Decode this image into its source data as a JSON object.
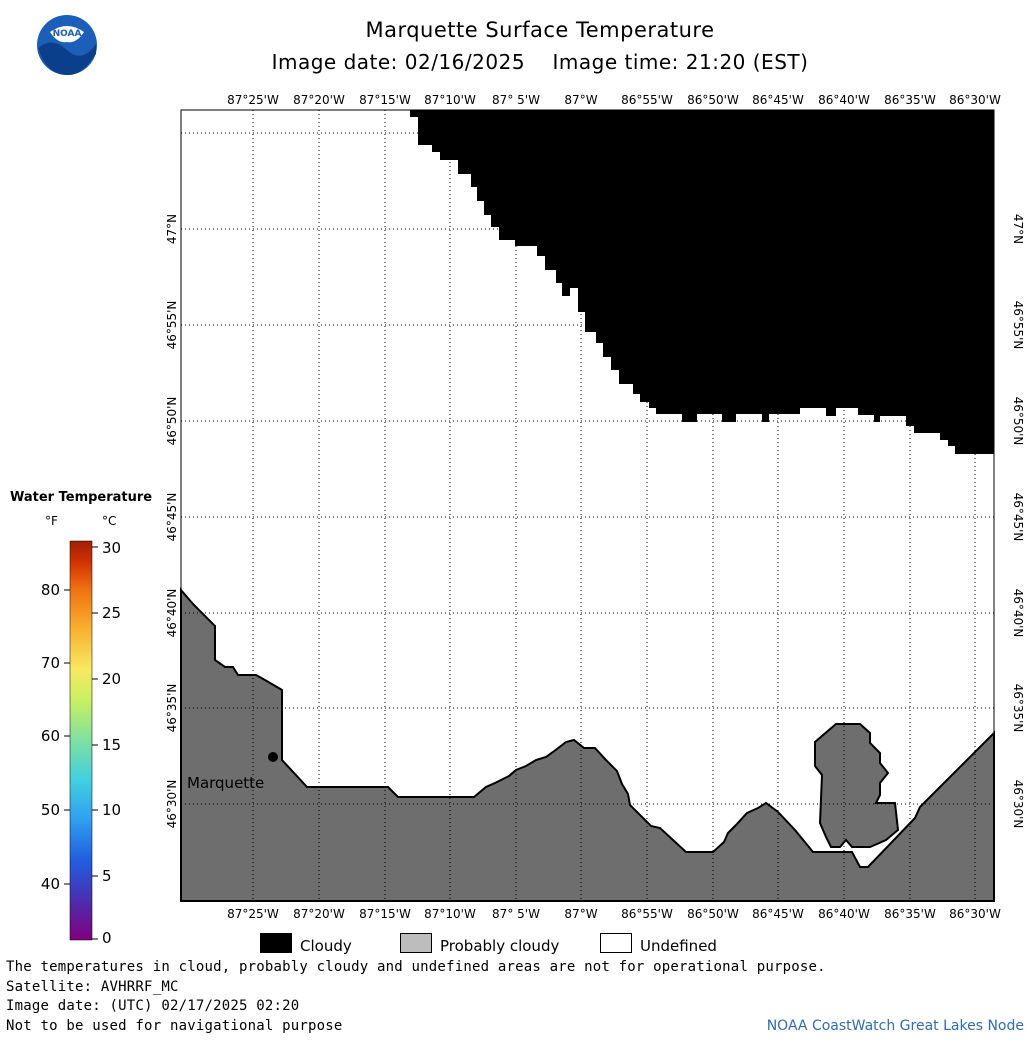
{
  "header": {
    "title": "Marquette Surface Temperature",
    "image_date_label": "Image date: 02/16/2025",
    "image_time_label": "Image time: 21:20 (EST)"
  },
  "logo": {
    "text": "NOAA",
    "icon": "noaa-logo-icon"
  },
  "map": {
    "lon_labels": [
      "87°25'W",
      "87°20'W",
      "87°15'W",
      "87°10'W",
      "87° 5'W",
      "87°W",
      "86°55'W",
      "86°50'W",
      "86°45'W",
      "86°40'W",
      "86°35'W",
      "86°30'W"
    ],
    "lat_labels": [
      "47°N",
      "46°55'N",
      "46°50'N",
      "46°45'N",
      "46°40'N",
      "46°35'N",
      "46°30'N"
    ],
    "city_label": "Marquette",
    "colors": {
      "cloud": "#000000",
      "land": "#6e6e6e",
      "water_undefined": "#ffffff",
      "grid": "#000000"
    }
  },
  "colorbar": {
    "title": "Water Temperature",
    "unit_f": "°F",
    "unit_c": "°C",
    "f_ticks": [
      "80",
      "70",
      "60",
      "50",
      "40"
    ],
    "c_ticks": [
      "30",
      "25",
      "20",
      "15",
      "10",
      "5",
      "0"
    ],
    "colors": [
      "#800080",
      "#4b2fb0",
      "#1f5fe0",
      "#2f9ef0",
      "#40d0e0",
      "#7ee0a0",
      "#c8f060",
      "#f8e860",
      "#f8b030",
      "#f07010",
      "#d03000",
      "#a02000"
    ]
  },
  "legend": {
    "cloudy": "Cloudy",
    "probably_cloudy": "Probably cloudy",
    "undefined": "Undefined"
  },
  "footer": {
    "note": "The temperatures in cloud, probably cloudy and undefined areas are not for operational purpose.",
    "satellite": "Satellite: AVHRRF_MC",
    "utc_date": "Image date: (UTC) 02/17/2025  02:20",
    "nav_warning": "Not to be used for navigational purpose",
    "credit": "NOAA CoastWatch Great Lakes Node"
  }
}
